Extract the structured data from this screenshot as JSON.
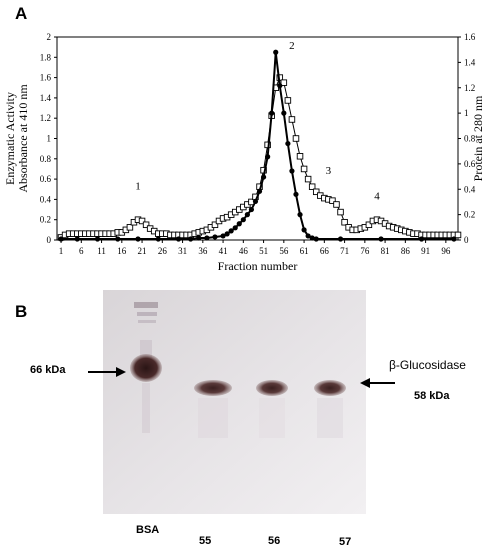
{
  "panel_a": {
    "letter": "A",
    "chart_data": {
      "type": "line",
      "xlabel": "Fraction number",
      "ylabel_left_line1": "Enzymatic Activity",
      "ylabel_left_line2": "Absorbance at 410 nm",
      "ylabel_right": "Protein at 280 nm",
      "xlim": [
        0,
        99
      ],
      "ylim_left": [
        0,
        2
      ],
      "ylim_right": [
        0,
        1.6
      ],
      "x_ticks": [
        "1",
        "6",
        "11",
        "16",
        "21",
        "26",
        "31",
        "36",
        "41",
        "46",
        "51",
        "56",
        "61",
        "66",
        "71",
        "76",
        "81",
        "86",
        "91",
        "96"
      ],
      "y_left_ticks": [
        "0",
        "0.2",
        "0.4",
        "0.6",
        "0.8",
        "1",
        "1.2",
        "1.4",
        "1.6",
        "1.8",
        "2"
      ],
      "y_right_ticks": [
        "0",
        "0.2",
        "0.4",
        "0.6",
        "0.8",
        "1",
        "1.2",
        "1.4",
        "1.6"
      ],
      "series": [
        {
          "axis": "left",
          "marker": "filled-circle",
          "points": [
            [
              1,
              0.01
            ],
            [
              5,
              0.01
            ],
            [
              10,
              0.01
            ],
            [
              15,
              0.01
            ],
            [
              20,
              0.01
            ],
            [
              25,
              0.01
            ],
            [
              30,
              0.01
            ],
            [
              33,
              0.01
            ],
            [
              35,
              0.02
            ],
            [
              37,
              0.02
            ],
            [
              39,
              0.03
            ],
            [
              41,
              0.04
            ],
            [
              42,
              0.06
            ],
            [
              43,
              0.09
            ],
            [
              44,
              0.12
            ],
            [
              45,
              0.16
            ],
            [
              46,
              0.2
            ],
            [
              47,
              0.25
            ],
            [
              48,
              0.3
            ],
            [
              49,
              0.38
            ],
            [
              50,
              0.48
            ],
            [
              51,
              0.62
            ],
            [
              52,
              0.82
            ],
            [
              53,
              1.25
            ],
            [
              54,
              1.85
            ],
            [
              55,
              1.52
            ],
            [
              56,
              1.25
            ],
            [
              57,
              0.95
            ],
            [
              58,
              0.68
            ],
            [
              59,
              0.45
            ],
            [
              60,
              0.25
            ],
            [
              61,
              0.1
            ],
            [
              62,
              0.04
            ],
            [
              63,
              0.02
            ],
            [
              64,
              0.01
            ],
            [
              70,
              0.01
            ],
            [
              80,
              0.01
            ],
            [
              90,
              0.01
            ],
            [
              98,
              0.01
            ]
          ]
        },
        {
          "axis": "right",
          "marker": "open-square",
          "points": [
            [
              1,
              0.02
            ],
            [
              2,
              0.04
            ],
            [
              3,
              0.05
            ],
            [
              4,
              0.05
            ],
            [
              5,
              0.05
            ],
            [
              6,
              0.05
            ],
            [
              7,
              0.05
            ],
            [
              8,
              0.05
            ],
            [
              9,
              0.05
            ],
            [
              10,
              0.05
            ],
            [
              11,
              0.05
            ],
            [
              12,
              0.05
            ],
            [
              13,
              0.05
            ],
            [
              14,
              0.05
            ],
            [
              15,
              0.06
            ],
            [
              16,
              0.06
            ],
            [
              17,
              0.08
            ],
            [
              18,
              0.1
            ],
            [
              19,
              0.14
            ],
            [
              20,
              0.16
            ],
            [
              21,
              0.15
            ],
            [
              22,
              0.12
            ],
            [
              23,
              0.09
            ],
            [
              24,
              0.07
            ],
            [
              25,
              0.05
            ],
            [
              26,
              0.05
            ],
            [
              27,
              0.05
            ],
            [
              28,
              0.04
            ],
            [
              29,
              0.04
            ],
            [
              30,
              0.04
            ],
            [
              31,
              0.04
            ],
            [
              32,
              0.04
            ],
            [
              33,
              0.04
            ],
            [
              34,
              0.05
            ],
            [
              35,
              0.06
            ],
            [
              36,
              0.07
            ],
            [
              37,
              0.08
            ],
            [
              38,
              0.1
            ],
            [
              39,
              0.12
            ],
            [
              40,
              0.15
            ],
            [
              41,
              0.17
            ],
            [
              42,
              0.18
            ],
            [
              43,
              0.2
            ],
            [
              44,
              0.22
            ],
            [
              45,
              0.24
            ],
            [
              46,
              0.26
            ],
            [
              47,
              0.28
            ],
            [
              48,
              0.3
            ],
            [
              49,
              0.34
            ],
            [
              50,
              0.42
            ],
            [
              51,
              0.55
            ],
            [
              52,
              0.75
            ],
            [
              53,
              0.98
            ],
            [
              54,
              1.2
            ],
            [
              55,
              1.28
            ],
            [
              56,
              1.24
            ],
            [
              57,
              1.1
            ],
            [
              58,
              0.95
            ],
            [
              59,
              0.8
            ],
            [
              60,
              0.66
            ],
            [
              61,
              0.56
            ],
            [
              62,
              0.48
            ],
            [
              63,
              0.42
            ],
            [
              64,
              0.38
            ],
            [
              65,
              0.35
            ],
            [
              66,
              0.33
            ],
            [
              67,
              0.32
            ],
            [
              68,
              0.31
            ],
            [
              69,
              0.28
            ],
            [
              70,
              0.22
            ],
            [
              71,
              0.14
            ],
            [
              72,
              0.1
            ],
            [
              73,
              0.08
            ],
            [
              74,
              0.08
            ],
            [
              75,
              0.09
            ],
            [
              76,
              0.1
            ],
            [
              77,
              0.12
            ],
            [
              78,
              0.15
            ],
            [
              79,
              0.16
            ],
            [
              80,
              0.15
            ],
            [
              81,
              0.13
            ],
            [
              82,
              0.11
            ],
            [
              83,
              0.1
            ],
            [
              84,
              0.09
            ],
            [
              85,
              0.08
            ],
            [
              86,
              0.07
            ],
            [
              87,
              0.06
            ],
            [
              88,
              0.05
            ],
            [
              89,
              0.05
            ],
            [
              90,
              0.04
            ],
            [
              91,
              0.04
            ],
            [
              92,
              0.04
            ],
            [
              93,
              0.04
            ],
            [
              94,
              0.04
            ],
            [
              95,
              0.04
            ],
            [
              96,
              0.04
            ],
            [
              97,
              0.04
            ],
            [
              98,
              0.04
            ],
            [
              99,
              0.04
            ]
          ]
        }
      ],
      "annotations": [
        {
          "text": "1",
          "x": 20,
          "y": 0.5
        },
        {
          "text": "2",
          "x": 58,
          "y": 1.88
        },
        {
          "text": "3",
          "x": 67,
          "y": 0.65
        },
        {
          "text": "4",
          "x": 79,
          "y": 0.4
        }
      ],
      "grid": false,
      "legend": "none"
    }
  },
  "panel_b": {
    "letter": "B",
    "marker_label": "66 kDa",
    "protein_name": "β-Glucosidase",
    "band_label": "58 kDa",
    "lanes": [
      "BSA",
      "55",
      "56",
      "57"
    ]
  }
}
